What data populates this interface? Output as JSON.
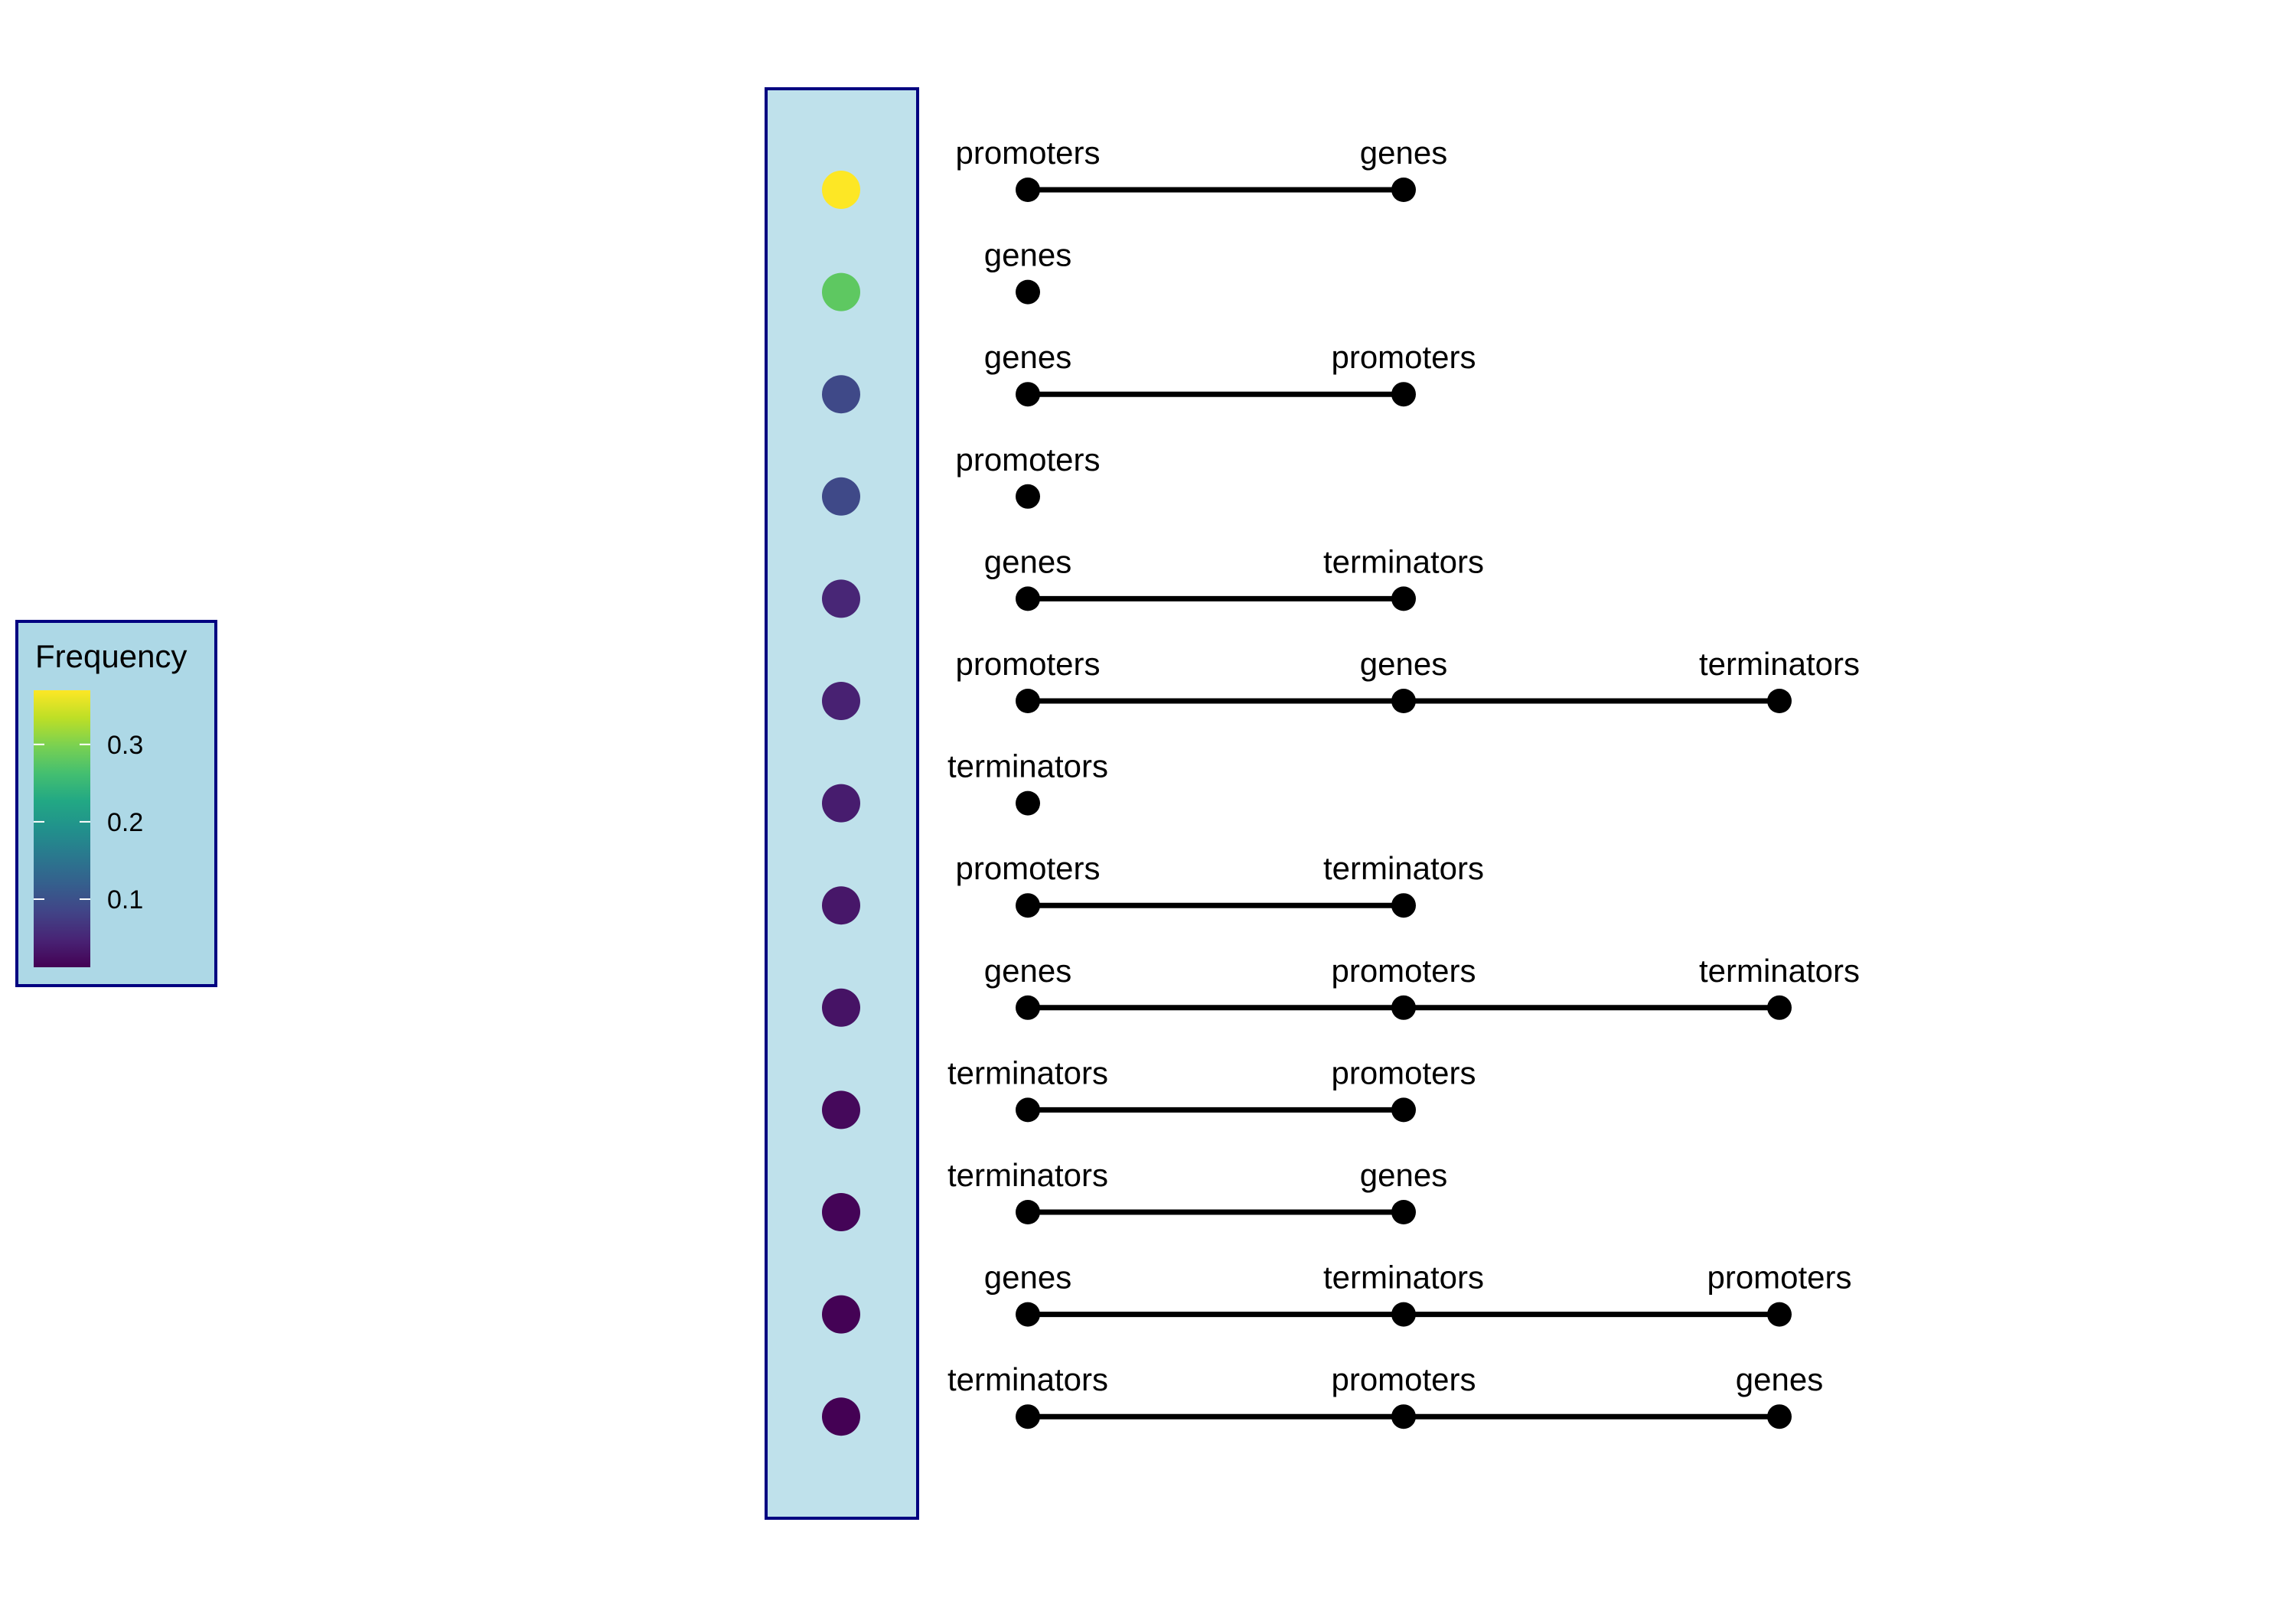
{
  "chart_data": {
    "type": "scatter",
    "description_of_encoding": "",
    "legend": {
      "title": "Frequency",
      "ticks": [
        {
          "value": 0.1,
          "label": "0.1"
        },
        {
          "value": 0.2,
          "label": "0.2"
        },
        {
          "value": 0.3,
          "label": "0.3"
        }
      ],
      "range": [
        0.012,
        0.37
      ],
      "placement": "left",
      "panel_color": "#add8e6",
      "border_color": "#000080"
    },
    "panel_color": "#add8e6",
    "border_color": "#000080",
    "rows": [
      {
        "frequency": 0.37,
        "elements": [
          "promoters",
          "genes"
        ]
      },
      {
        "frequency": 0.28,
        "elements": [
          "genes"
        ]
      },
      {
        "frequency": 0.09,
        "elements": [
          "genes",
          "promoters"
        ]
      },
      {
        "frequency": 0.09,
        "elements": [
          "promoters"
        ]
      },
      {
        "frequency": 0.05,
        "elements": [
          "genes",
          "terminators"
        ]
      },
      {
        "frequency": 0.045,
        "elements": [
          "promoters",
          "genes",
          "terminators"
        ]
      },
      {
        "frequency": 0.04,
        "elements": [
          "terminators"
        ]
      },
      {
        "frequency": 0.035,
        "elements": [
          "promoters",
          "terminators"
        ]
      },
      {
        "frequency": 0.03,
        "elements": [
          "genes",
          "promoters",
          "terminators"
        ]
      },
      {
        "frequency": 0.02,
        "elements": [
          "terminators",
          "promoters"
        ]
      },
      {
        "frequency": 0.015,
        "elements": [
          "terminators",
          "genes"
        ]
      },
      {
        "frequency": 0.013,
        "elements": [
          "genes",
          "terminators",
          "promoters"
        ]
      },
      {
        "frequency": 0.012,
        "elements": [
          "terminators",
          "promoters",
          "genes"
        ]
      }
    ]
  }
}
